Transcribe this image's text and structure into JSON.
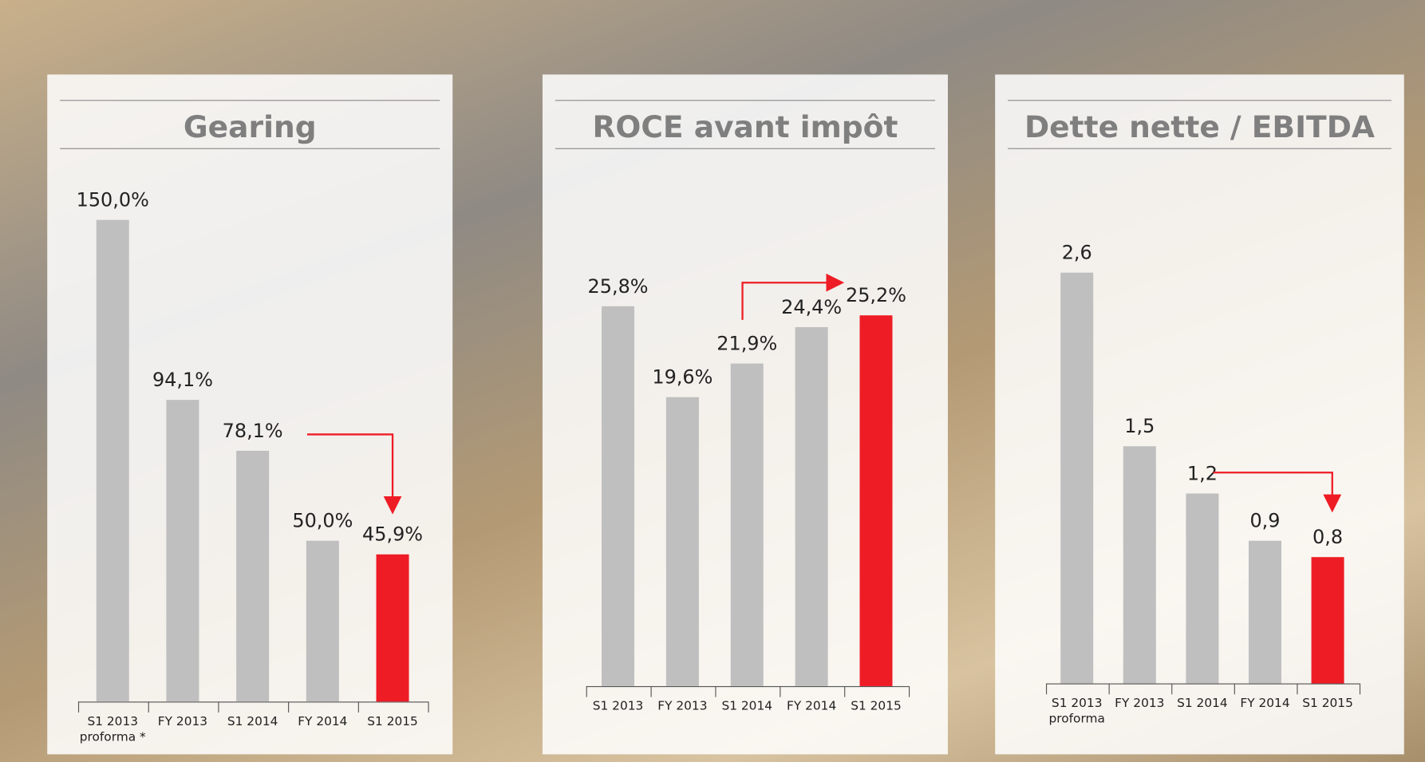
{
  "chart_data": [
    {
      "type": "bar",
      "title": "Gearing",
      "categories": [
        "S1 2013\nproforma *",
        "FY 2013",
        "S1 2014",
        "FY 2014",
        "S1 2015"
      ],
      "values": [
        150.0,
        94.1,
        78.1,
        50.0,
        45.9
      ],
      "value_labels": [
        "150,0%",
        "94,1%",
        "78,1%",
        "50,0%",
        "45,9%"
      ],
      "colors": [
        "#bfbfbf",
        "#bfbfbf",
        "#bfbfbf",
        "#bfbfbf",
        "#ee1c25"
      ],
      "ylim": [
        0,
        160
      ]
    },
    {
      "type": "bar",
      "title": "ROCE avant impôt",
      "categories": [
        "S1 2013",
        "FY 2013",
        "S1 2014",
        "FY 2014",
        "S1 2015"
      ],
      "values": [
        25.8,
        19.6,
        21.9,
        24.4,
        25.2
      ],
      "value_labels": [
        "25,8%",
        "19,6%",
        "21,9%",
        "24,4%",
        "25,2%"
      ],
      "colors": [
        "#bfbfbf",
        "#bfbfbf",
        "#bfbfbf",
        "#bfbfbf",
        "#ee1c25"
      ],
      "ylim": [
        0,
        30
      ]
    },
    {
      "type": "bar",
      "title": "Dette nette / EBITDA",
      "categories": [
        "S1 2013\nproforma",
        "FY 2013",
        "S1 2014",
        "FY 2014",
        "S1 2015"
      ],
      "values": [
        2.6,
        1.5,
        1.2,
        0.9,
        0.8
      ],
      "value_labels": [
        "2,6",
        "1,5",
        "1,2",
        "0,9",
        "0,8"
      ],
      "colors": [
        "#bfbfbf",
        "#bfbfbf",
        "#bfbfbf",
        "#bfbfbf",
        "#ee1c25"
      ],
      "ylim": [
        0,
        3
      ]
    }
  ]
}
